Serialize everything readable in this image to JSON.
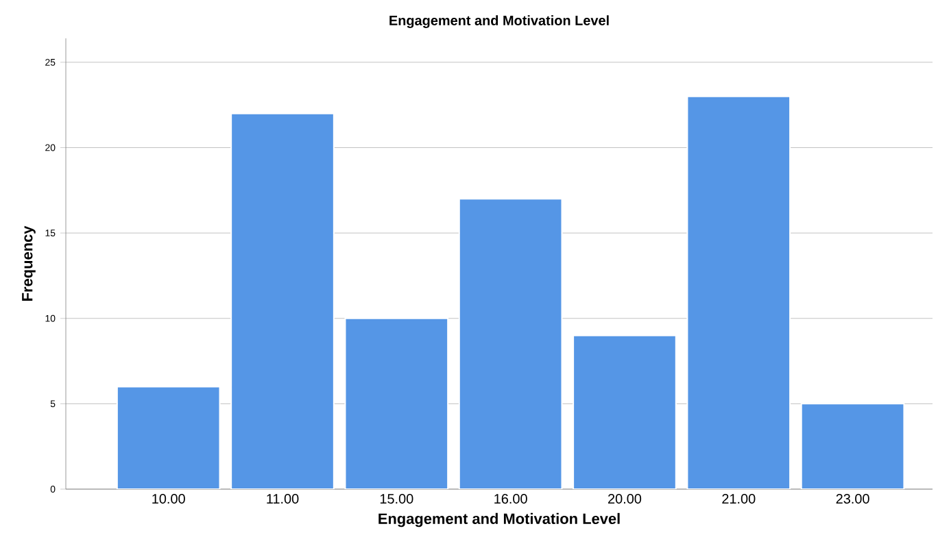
{
  "chart_data": {
    "type": "bar",
    "title": "Engagement and Motivation Level",
    "xlabel": "Engagement and Motivation Level",
    "ylabel": "Frequency",
    "categories": [
      "10.00",
      "11.00",
      "15.00",
      "16.00",
      "20.00",
      "21.00",
      "23.00"
    ],
    "values": [
      6,
      22,
      10,
      17,
      9,
      23,
      5
    ],
    "color": "#5596e6",
    "ylim": [
      0,
      26.4
    ],
    "yticks": [
      0,
      5,
      10,
      15,
      20,
      25
    ],
    "grid": "y"
  }
}
